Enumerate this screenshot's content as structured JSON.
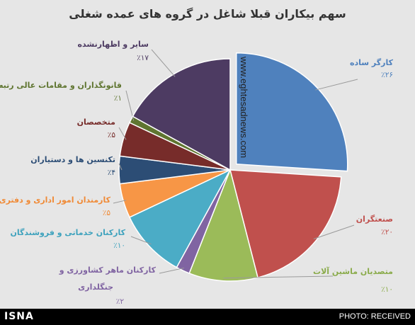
{
  "title": "سهم بیکاران قبلا شاغل در گروه های عمده شغلی",
  "watermark": "www.eghtesadnews.com",
  "footer": {
    "left": "ISNA",
    "right": "PHOTO: RECEIVED"
  },
  "chart_data": {
    "type": "pie",
    "title": "سهم بیکاران قبلا شاغل در گروه های عمده شغلی",
    "slices": [
      {
        "label": "کارگر ساده",
        "value": 26,
        "value_label": "٪۲۶",
        "color": "#4f81bd",
        "label_color": "#4f81bd",
        "exploded": true
      },
      {
        "label": "صنعتگران",
        "value": 20,
        "value_label": "٪۲۰",
        "color": "#c0504d",
        "label_color": "#c0504d"
      },
      {
        "label": "متصدیان ماشین آلات",
        "value": 10,
        "value_label": "٪۱۰",
        "color": "#9bbb59",
        "label_color": "#8aab4a"
      },
      {
        "label": "کارکنان ماهر کشاورزی و جنگلداری",
        "value": 2,
        "value_label": "٪۲",
        "color": "#8064a2",
        "label_color": "#8064a2"
      },
      {
        "label": "کارکنان خدماتی و فروشندگان",
        "value": 10,
        "value_label": "٪۱۰",
        "color": "#4bacc6",
        "label_color": "#3ea2bd"
      },
      {
        "label": "کارمندان امور اداری و دفتری",
        "value": 5,
        "value_label": "٪۵",
        "color": "#f79646",
        "label_color": "#f08a36"
      },
      {
        "label": "تکنسین ها و دستیاران",
        "value": 4,
        "value_label": "٪۴",
        "color": "#2c4d75",
        "label_color": "#2c4d75"
      },
      {
        "label": "متخصصان",
        "value": 5,
        "value_label": "٪۵",
        "color": "#772c2a",
        "label_color": "#772c2a"
      },
      {
        "label": "قانونگذاران و مقامات عالی رتبه",
        "value": 1,
        "value_label": "٪۱",
        "color": "#5f7530",
        "label_color": "#5f7530"
      },
      {
        "label": "سایر و اظهارنشده",
        "value": 17,
        "value_label": "٪۱۷",
        "color": "#4d3b62",
        "label_color": "#4d3b62"
      }
    ]
  }
}
